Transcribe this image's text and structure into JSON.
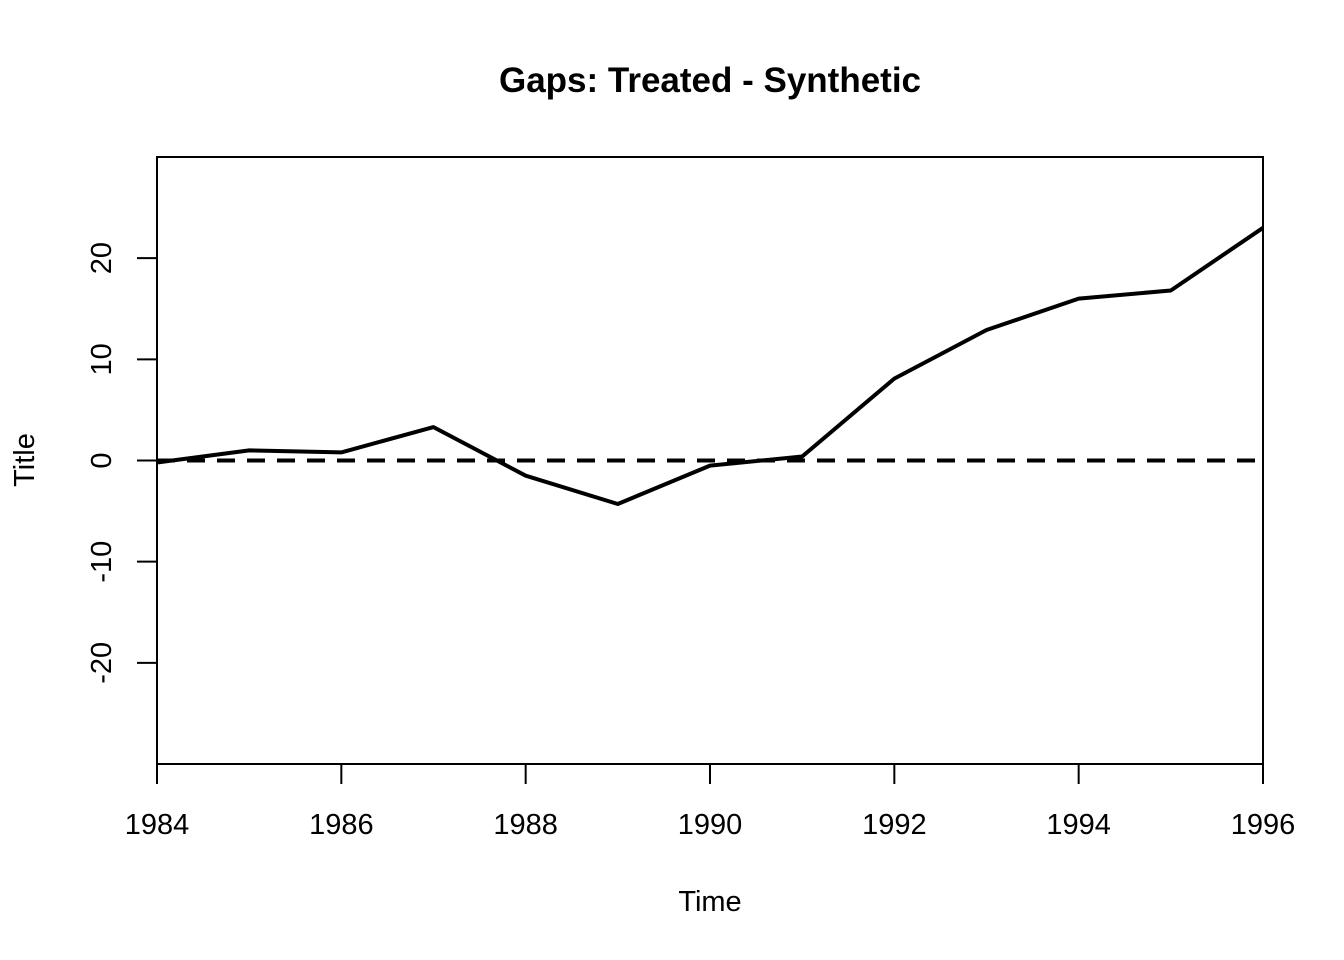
{
  "chart_data": {
    "type": "line",
    "title": "Gaps: Treated - Synthetic",
    "xlabel": "Time",
    "ylabel": "Title",
    "xlim": [
      1984,
      1996
    ],
    "ylim": [
      -30,
      30
    ],
    "x_ticks": [
      "1984",
      "1986",
      "1988",
      "1990",
      "1992",
      "1994",
      "1996"
    ],
    "y_ticks": [
      "-20",
      "-10",
      "0",
      "10",
      "20"
    ],
    "grid": false,
    "legend": "none",
    "series": [
      {
        "style": "solid",
        "x": [
          1984,
          1985,
          1986,
          1987,
          1988,
          1989,
          1990,
          1991,
          1992,
          1993,
          1994,
          1995,
          1996
        ],
        "values": [
          -0.2,
          1.0,
          0.8,
          3.3,
          -1.5,
          -4.3,
          -0.5,
          0.4,
          8.1,
          12.9,
          16.0,
          16.8,
          23.0
        ]
      },
      {
        "style": "dashed",
        "x": [
          1984,
          1996
        ],
        "values": [
          0,
          0
        ]
      }
    ]
  }
}
